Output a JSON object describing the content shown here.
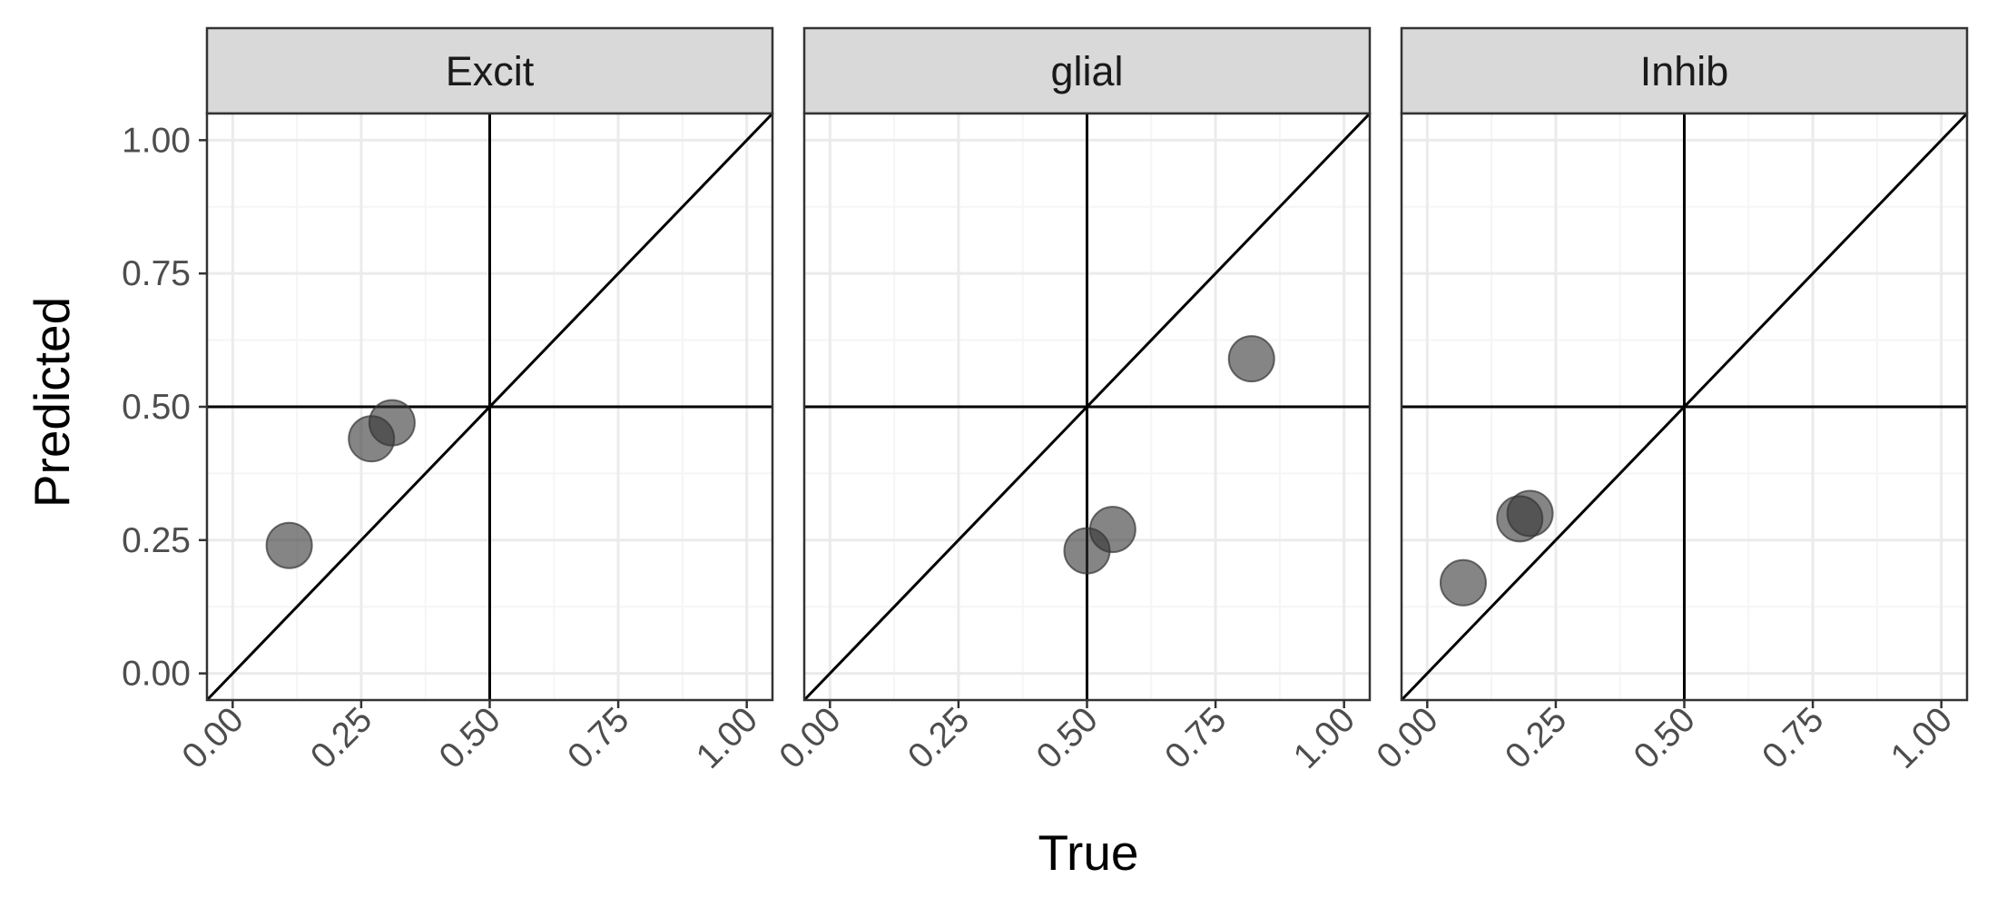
{
  "chart_data": {
    "type": "scatter",
    "facet_layout": "1 row x 3 columns, shared y-axis on left",
    "xlabel": "True",
    "ylabel": "Predicted",
    "xlim": [
      -0.05,
      1.05
    ],
    "ylim": [
      -0.05,
      1.05
    ],
    "x_ticks": [
      "0.00",
      "0.25",
      "0.50",
      "0.75",
      "1.00"
    ],
    "y_ticks": [
      "0.00",
      "0.25",
      "0.50",
      "0.75",
      "1.00"
    ],
    "x_tick_values": [
      0,
      0.25,
      0.5,
      0.75,
      1.0
    ],
    "y_tick_values": [
      0,
      0.25,
      0.5,
      0.75,
      1.0
    ],
    "grid": true,
    "reference_lines": {
      "diagonal": "y = x",
      "vertical": 0.5,
      "horizontal": 0.5
    },
    "point_color": "#333333",
    "point_opacity": 0.6,
    "panels": [
      {
        "title": "Excit",
        "points": [
          {
            "x": 0.11,
            "y": 0.24
          },
          {
            "x": 0.27,
            "y": 0.44
          },
          {
            "x": 0.31,
            "y": 0.47
          }
        ]
      },
      {
        "title": "glial",
        "points": [
          {
            "x": 0.5,
            "y": 0.23
          },
          {
            "x": 0.55,
            "y": 0.27
          },
          {
            "x": 0.82,
            "y": 0.59
          }
        ]
      },
      {
        "title": "Inhib",
        "points": [
          {
            "x": 0.07,
            "y": 0.17
          },
          {
            "x": 0.18,
            "y": 0.29
          },
          {
            "x": 0.2,
            "y": 0.3
          }
        ]
      }
    ]
  },
  "colors": {
    "background": "#ffffff",
    "strip_fill": "#d9d9d9",
    "border": "#333333",
    "grid_major": "#ebebeb",
    "grid_minor": "#f5f5f5",
    "reference_line": "#000000",
    "tick_text": "#4d4d4d"
  }
}
